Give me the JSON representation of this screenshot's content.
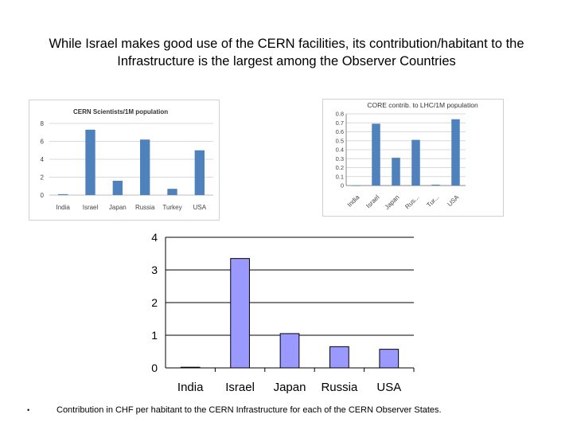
{
  "title": "While Israel makes good use of the CERN facilities, its contribution/habitant to the Infrastructure is the largest among the Observer Countries",
  "bullet": {
    "marker": "•",
    "text": "Contribution in CHF per habitant to the CERN Infrastructure  for each of the CERN Observer States."
  },
  "colors": {
    "excel_bar": "#4f81bd",
    "ppt_bar": "#9999ff",
    "grid": "#d9d9d9"
  },
  "chart_data": [
    {
      "type": "bar",
      "title": "CERN Scientists/1M population",
      "categories": [
        "India",
        "Israel",
        "Japan",
        "Russia",
        "Turkey",
        "USA"
      ],
      "values": [
        0.1,
        7.3,
        1.6,
        6.2,
        0.7,
        5.0
      ],
      "ylim": [
        0,
        8
      ],
      "yticks": [
        0,
        2,
        4,
        6,
        8
      ],
      "xlabel": "",
      "ylabel": "",
      "grid": true,
      "legend": "none"
    },
    {
      "type": "bar",
      "title": "CORE contrib. to LHC/1M population",
      "categories": [
        "India",
        "Israel",
        "Japan",
        "Rus...",
        "Tur...",
        "USA"
      ],
      "values": [
        0.0,
        0.69,
        0.31,
        0.51,
        0.01,
        0.74
      ],
      "ylim": [
        0,
        0.8
      ],
      "yticks": [
        "0",
        "0.1",
        "0.2",
        "0.3",
        "0.4",
        "0.5",
        "0.6",
        "0.7",
        "0.8"
      ],
      "xlabel": "",
      "ylabel": "",
      "grid": true,
      "legend": "none"
    },
    {
      "type": "bar",
      "title": "",
      "categories": [
        "India",
        "Israel",
        "Japan",
        "Russia",
        "USA"
      ],
      "values": [
        0.02,
        3.35,
        1.05,
        0.65,
        0.57
      ],
      "ylim": [
        0,
        4
      ],
      "yticks": [
        0,
        1,
        2,
        3,
        4
      ],
      "xlabel": "",
      "ylabel": "",
      "grid": true,
      "legend": "none"
    }
  ]
}
